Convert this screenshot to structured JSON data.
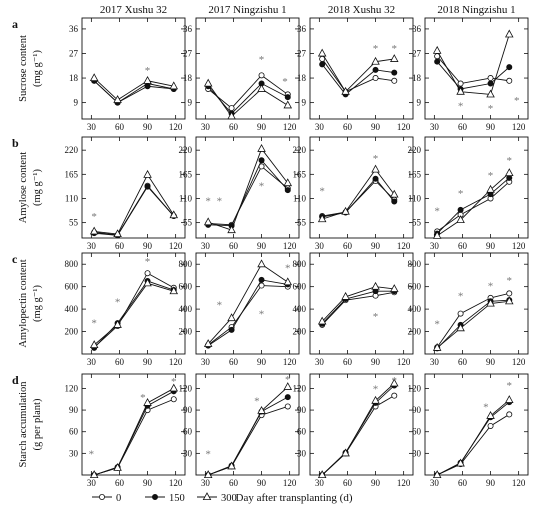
{
  "legend": {
    "entries": [
      {
        "label": "0",
        "marker": "open-circle"
      },
      {
        "label": "150",
        "marker": "filled-circle"
      },
      {
        "label": "300",
        "marker": "open-triangle"
      }
    ]
  },
  "xlabel": "Day after transplanting (d)",
  "chart_data": {
    "type": "line",
    "x": [
      30,
      60,
      90,
      120
    ],
    "xlim": [
      20,
      130
    ],
    "xticks": [
      30,
      60,
      90,
      120
    ],
    "columns": [
      "2017 Xushu 32",
      "2017 Ningzishu 1",
      "2018 Xushu 32",
      "2018 Ningzishu 1"
    ],
    "series_names": [
      "0",
      "150",
      "300"
    ],
    "rows": [
      {
        "letter": "a",
        "ylabel": "Sucrose content",
        "yunit": "(mg g⁻¹)",
        "ylim": [
          3,
          40
        ],
        "yticks": [
          9,
          18,
          27,
          36
        ],
        "panels": [
          {
            "x": [
              33,
              58,
              90,
              118
            ],
            "series": [
              [
                17,
                9,
                16,
                14
              ],
              [
                17,
                9,
                15,
                14
              ],
              [
                18,
                10,
                17,
                15
              ]
            ],
            "stars": [
              {
                "x": 90,
                "y": 21
              }
            ]
          },
          {
            "x": [
              33,
              58,
              90,
              118
            ],
            "series": [
              [
                14,
                7,
                19,
                12
              ],
              [
                15,
                5,
                16,
                11
              ],
              [
                16,
                4,
                14,
                8
              ]
            ],
            "stars": [
              {
                "x": 90,
                "y": 25
              },
              {
                "x": 115,
                "y": 17
              }
            ]
          },
          {
            "x": [
              33,
              58,
              90,
              110
            ],
            "series": [
              [
                25,
                13,
                18,
                17
              ],
              [
                23,
                12,
                21,
                20
              ],
              [
                27,
                13,
                24,
                25
              ]
            ],
            "stars": [
              {
                "x": 90,
                "y": 29
              },
              {
                "x": 110,
                "y": 29
              }
            ]
          },
          {
            "x": [
              33,
              58,
              90,
              110
            ],
            "series": [
              [
                26,
                16,
                18,
                17
              ],
              [
                24,
                14,
                16,
                22
              ],
              [
                28,
                13,
                12,
                34
              ]
            ],
            "stars": [
              {
                "x": 58,
                "y": 8
              },
              {
                "x": 90,
                "y": 7
              },
              {
                "x": 118,
                "y": 10
              }
            ]
          }
        ]
      },
      {
        "letter": "b",
        "ylabel": "Amylose content",
        "yunit": "(mg g⁻¹)",
        "ylim": [
          20,
          250
        ],
        "yticks": [
          55,
          110,
          165,
          220
        ],
        "panels": [
          {
            "x": [
              33,
              58,
              90,
              118
            ],
            "series": [
              [
                33,
                27,
                139,
                70
              ],
              [
                31,
                26,
                137,
                70
              ],
              [
                35,
                29,
                164,
                72
              ]
            ],
            "stars": [
              {
                "x": 33,
                "y": 70
              }
            ]
          },
          {
            "x": [
              33,
              58,
              90,
              118
            ],
            "series": [
              [
                53,
                50,
                183,
                133
              ],
              [
                50,
                48,
                197,
                129
              ],
              [
                56,
                38,
                223,
                145
              ]
            ],
            "stars": [
              {
                "x": 33,
                "y": 105
              },
              {
                "x": 45,
                "y": 105
              },
              {
                "x": 90,
                "y": 140
              }
            ]
          },
          {
            "x": [
              33,
              58,
              90,
              110
            ],
            "series": [
              [
                70,
                79,
                150,
                107
              ],
              [
                68,
                78,
                155,
                103
              ],
              [
                63,
                80,
                176,
                119
              ]
            ],
            "stars": [
              {
                "x": 33,
                "y": 128
              },
              {
                "x": 90,
                "y": 202
              }
            ]
          },
          {
            "x": [
              33,
              58,
              90,
              110
            ],
            "series": [
              [
                35,
                73,
                110,
                148
              ],
              [
                30,
                84,
                120,
                157
              ],
              [
                25,
                61,
                130,
                168
              ]
            ],
            "stars": [
              {
                "x": 33,
                "y": 83
              },
              {
                "x": 58,
                "y": 123
              },
              {
                "x": 90,
                "y": 163
              },
              {
                "x": 110,
                "y": 198
              }
            ]
          }
        ]
      },
      {
        "letter": "c",
        "ylabel": "Amylopectin content",
        "yunit": "(mg g⁻¹)",
        "ylim": [
          0,
          900
        ],
        "yticks": [
          200,
          400,
          600,
          800
        ],
        "panels": [
          {
            "x": [
              33,
              58,
              90,
              118
            ],
            "series": [
              [
                60,
                250,
                720,
                590
              ],
              [
                55,
                275,
                650,
                570
              ],
              [
                80,
                260,
                630,
                560
              ]
            ],
            "stars": [
              {
                "x": 33,
                "y": 280
              },
              {
                "x": 58,
                "y": 470
              },
              {
                "x": 90,
                "y": 830
              }
            ]
          },
          {
            "x": [
              33,
              58,
              90,
              118
            ],
            "series": [
              [
                80,
                240,
                610,
                600
              ],
              [
                75,
                215,
                660,
                620
              ],
              [
                90,
                320,
                800,
                640
              ]
            ],
            "stars": [
              {
                "x": 45,
                "y": 440
              },
              {
                "x": 90,
                "y": 360
              },
              {
                "x": 118,
                "y": 770
              }
            ]
          },
          {
            "x": [
              33,
              58,
              90,
              110
            ],
            "series": [
              [
                260,
                480,
                520,
                550
              ],
              [
                270,
                490,
                560,
                560
              ],
              [
                290,
                510,
                600,
                580
              ]
            ],
            "stars": [
              {
                "x": 90,
                "y": 340
              }
            ]
          },
          {
            "x": [
              33,
              58,
              90,
              110
            ],
            "series": [
              [
                60,
                360,
                500,
                540
              ],
              [
                50,
                260,
                470,
                480
              ],
              [
                55,
                230,
                450,
                470
              ]
            ],
            "stars": [
              {
                "x": 33,
                "y": 270
              },
              {
                "x": 58,
                "y": 520
              },
              {
                "x": 90,
                "y": 610
              },
              {
                "x": 110,
                "y": 660
              }
            ]
          }
        ]
      },
      {
        "letter": "d",
        "ylabel": "Starch accumulation",
        "yunit": "(g per plant)",
        "ylim": [
          0,
          140
        ],
        "yticks": [
          30,
          60,
          90,
          120
        ],
        "panels": [
          {
            "x": [
              33,
              58,
              90,
              118
            ],
            "series": [
              [
                0,
                10,
                90,
                105
              ],
              [
                0,
                11,
                96,
                116
              ],
              [
                0,
                10,
                100,
                120
              ]
            ],
            "stars": [
              {
                "x": 30,
                "y": 30
              },
              {
                "x": 85,
                "y": 108
              },
              {
                "x": 118,
                "y": 130
              }
            ]
          },
          {
            "x": [
              33,
              58,
              90,
              118
            ],
            "series": [
              [
                0,
                12,
                83,
                95
              ],
              [
                0,
                13,
                88,
                108
              ],
              [
                0,
                12,
                89,
                122
              ]
            ],
            "stars": [
              {
                "x": 33,
                "y": 30
              },
              {
                "x": 85,
                "y": 103
              },
              {
                "x": 118,
                "y": 133
              }
            ]
          },
          {
            "x": [
              33,
              58,
              90,
              110
            ],
            "series": [
              [
                0,
                30,
                95,
                110
              ],
              [
                0,
                31,
                100,
                124
              ],
              [
                0,
                30,
                103,
                127
              ]
            ],
            "stars": [
              {
                "x": 90,
                "y": 120
              },
              {
                "x": 110,
                "y": 132
              }
            ]
          },
          {
            "x": [
              33,
              58,
              90,
              110
            ],
            "series": [
              [
                0,
                15,
                68,
                84
              ],
              [
                0,
                17,
                80,
                101
              ],
              [
                0,
                16,
                82,
                104
              ]
            ],
            "stars": [
              {
                "x": 85,
                "y": 95
              },
              {
                "x": 110,
                "y": 125
              }
            ]
          }
        ]
      }
    ]
  }
}
